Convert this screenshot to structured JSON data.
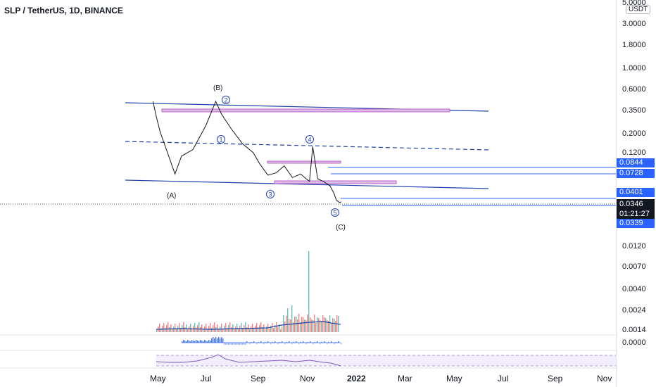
{
  "header": {
    "title": "SLP / TetherUS, 1D, BINANCE"
  },
  "price_axis": {
    "unit": "USDT",
    "ticks": [
      "5.0000",
      "3.0000",
      "1.8000",
      "1.0000",
      "0.6000",
      "0.3500",
      "0.2000",
      "0.1200"
    ],
    "lower_ticks": [
      "0.0120",
      "0.0070",
      "0.0040",
      "0.0024",
      "0.0014"
    ],
    "osc_tick": "0.0000",
    "badges": [
      "0.0844",
      "0.0728",
      "0.0401",
      "0.0339"
    ],
    "current_price": "0.0346",
    "countdown": "01:21:27"
  },
  "time_axis": [
    "May",
    "Jul",
    "Sep",
    "Nov",
    "2022",
    "Mar",
    "May",
    "Jul",
    "Sep",
    "Nov"
  ],
  "wave_labels": [
    "(B)",
    "(A)",
    "(C)",
    "1",
    "2",
    "3",
    "4",
    "5"
  ],
  "colors": {
    "trendline": "#2142a8",
    "price_line": "#2962ff",
    "candle_up": "#26a69a",
    "candle_down": "#ef5350",
    "zone_fill": "#e1bee7",
    "zone_border": "#ab47bc",
    "candle_line": "#131722",
    "volume_ma": "#2142a8",
    "rsi": "#7e57c2",
    "osc_hist": "#2962ff"
  },
  "chart_data": {
    "type": "line",
    "series": [
      {
        "values": [
          0.44,
          0.3,
          0.2,
          0.15,
          0.07,
          0.11,
          0.13,
          0.24,
          0.44,
          0.32,
          0.22,
          0.15,
          0.12,
          0.09,
          0.068,
          0.072,
          0.086,
          0.064,
          0.07,
          0.062,
          0.058,
          0.14,
          0.062,
          0.058,
          0.052,
          0.043,
          0.036,
          0.034,
          0.0346
        ]
      }
    ],
    "x": [
      "2021-04-27",
      "2021-05-01",
      "2021-05-06",
      "2021-05-11",
      "2021-05-24",
      "2021-06-01",
      "2021-06-15",
      "2021-07-01",
      "2021-07-13",
      "2021-07-20",
      "2021-08-01",
      "2021-08-15",
      "2021-08-28",
      "2021-09-05",
      "2021-09-15",
      "2021-09-25",
      "2021-10-05",
      "2021-10-15",
      "2021-10-25",
      "2021-11-01",
      "2021-11-05",
      "2021-11-09",
      "2021-11-15",
      "2021-11-22",
      "2021-11-30",
      "2021-12-05",
      "2021-12-08",
      "2021-12-12",
      "2021-12-14"
    ],
    "xlabel": "",
    "ylabel": "",
    "scale": "log",
    "ylim": [
      0.03,
      5.0
    ]
  }
}
